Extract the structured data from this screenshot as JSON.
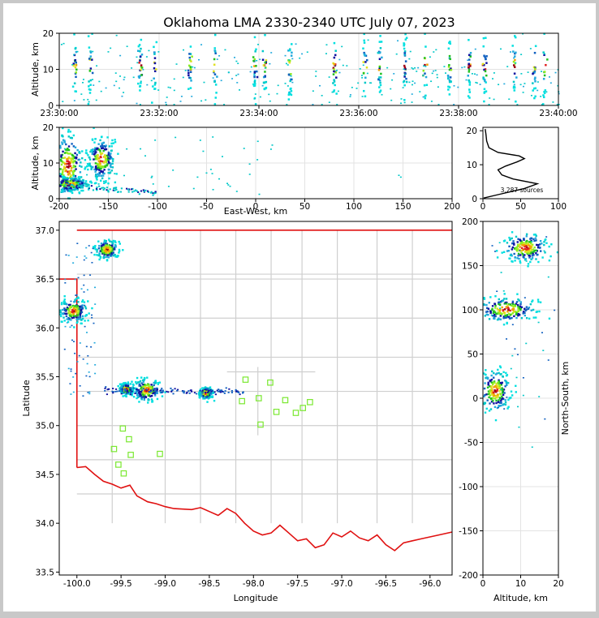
{
  "title": "Oklahoma LMA 2330-2340 UTC July 07, 2023",
  "chart_data": [
    {
      "panel": "altitude-vs-time",
      "type": "scatter",
      "xlabel": "",
      "ylabel": "Altitude, km",
      "xticks": [
        "23:30:00",
        "23:32:00",
        "23:34:00",
        "23:36:00",
        "23:38:00",
        "23:40:00"
      ],
      "xlim_minutes": [
        0,
        10
      ],
      "ylim": [
        0,
        20
      ],
      "yticks": [
        0,
        10,
        20
      ],
      "grid": true,
      "burst_columns_minutes": [
        0.3,
        0.6,
        1.6,
        1.9,
        2.6,
        3.1,
        3.9,
        4.1,
        4.6,
        5.5,
        6.1,
        6.4,
        6.9,
        7.3,
        7.8,
        8.2,
        8.5,
        9.1,
        9.5,
        9.7
      ]
    },
    {
      "panel": "altitude-vs-east-west",
      "type": "scatter",
      "xlabel": "East-West, km",
      "ylabel": "Altitude, km",
      "xlim": [
        -200,
        200
      ],
      "xticks": [
        -200,
        -150,
        -100,
        -50,
        0,
        50,
        100,
        150,
        200
      ],
      "ylim": [
        0,
        20
      ],
      "yticks": [
        0,
        10,
        20
      ],
      "grid": true,
      "clusters": [
        {
          "x": -158,
          "y": 11,
          "spread_x": 7,
          "spread_y": 3
        },
        {
          "x": -192,
          "y": 9,
          "spread_x": 8,
          "spread_y": 5
        },
        {
          "x": -190,
          "y": 4,
          "spread_x": 10,
          "spread_y": 1
        }
      ]
    },
    {
      "panel": "altitude-histogram",
      "type": "line",
      "xlim": [
        0,
        100
      ],
      "xticks": [
        0,
        50,
        100
      ],
      "ylim": [
        0,
        20
      ],
      "yticks": [
        0,
        10,
        20
      ],
      "annotation": "3,287 sources",
      "profile": [
        [
          1,
          0.2
        ],
        [
          20,
          1.2
        ],
        [
          55,
          3.0
        ],
        [
          72,
          4.4
        ],
        [
          40,
          5.8
        ],
        [
          25,
          7.0
        ],
        [
          20,
          8.5
        ],
        [
          30,
          9.6
        ],
        [
          45,
          10.8
        ],
        [
          55,
          11.8
        ],
        [
          48,
          12.6
        ],
        [
          20,
          13.6
        ],
        [
          8,
          15
        ],
        [
          5,
          17
        ],
        [
          4,
          19
        ],
        [
          3,
          20.5
        ]
      ]
    },
    {
      "panel": "plan-view-map",
      "type": "scatter",
      "xlabel": "Longitude",
      "ylabel": "Latitude",
      "xlim": [
        -100.2,
        -95.75
      ],
      "xticks": [
        "-100.0",
        "-99.5",
        "-99.0",
        "-98.5",
        "-98.0",
        "-97.5",
        "-97.0",
        "-96.5",
        "-96.0"
      ],
      "ylim": [
        33.47,
        37.09
      ],
      "yticks": [
        "33.5",
        "34.0",
        "34.5",
        "35.0",
        "35.5",
        "36.0",
        "36.5",
        "37.0"
      ],
      "stations": [
        [
          -98.09,
          35.47
        ],
        [
          -97.81,
          35.44
        ],
        [
          -98.13,
          35.25
        ],
        [
          -97.94,
          35.28
        ],
        [
          -97.64,
          35.26
        ],
        [
          -97.36,
          35.24
        ],
        [
          -97.44,
          35.18
        ],
        [
          -97.74,
          35.14
        ],
        [
          -97.52,
          35.13
        ],
        [
          -97.92,
          35.01
        ],
        [
          -99.48,
          34.97
        ],
        [
          -99.41,
          34.86
        ],
        [
          -99.58,
          34.76
        ],
        [
          -99.06,
          34.71
        ],
        [
          -99.39,
          34.7
        ],
        [
          -99.53,
          34.6
        ],
        [
          -99.47,
          34.51
        ]
      ],
      "clusters": [
        {
          "lon": -99.67,
          "lat": 36.8,
          "spread": 0.05
        },
        {
          "lon": -100.05,
          "lat": 36.17,
          "spread": 0.06
        },
        {
          "lon": -99.22,
          "lat": 35.36,
          "spread": 0.06
        },
        {
          "lon": -99.45,
          "lat": 35.37,
          "spread": 0.03
        },
        {
          "lon": -98.55,
          "lat": 35.33,
          "spread": 0.03
        }
      ]
    },
    {
      "panel": "north-south-vs-altitude",
      "type": "scatter",
      "xlabel": "Altitude, km",
      "ylabel": "North-South, km",
      "xlim": [
        0,
        20
      ],
      "xticks": [
        0,
        10,
        20
      ],
      "ylim": [
        -200,
        200
      ],
      "yticks": [
        -200,
        -150,
        -100,
        -50,
        0,
        50,
        100,
        150,
        200
      ],
      "grid": true,
      "clusters": [
        {
          "x": 11,
          "y": 170,
          "spread_x": 3,
          "spread_y": 8
        },
        {
          "x": 6,
          "y": 100,
          "spread_x": 4,
          "spread_y": 7
        },
        {
          "x": 3,
          "y": 8,
          "spread_x": 2,
          "spread_y": 12
        }
      ]
    }
  ]
}
